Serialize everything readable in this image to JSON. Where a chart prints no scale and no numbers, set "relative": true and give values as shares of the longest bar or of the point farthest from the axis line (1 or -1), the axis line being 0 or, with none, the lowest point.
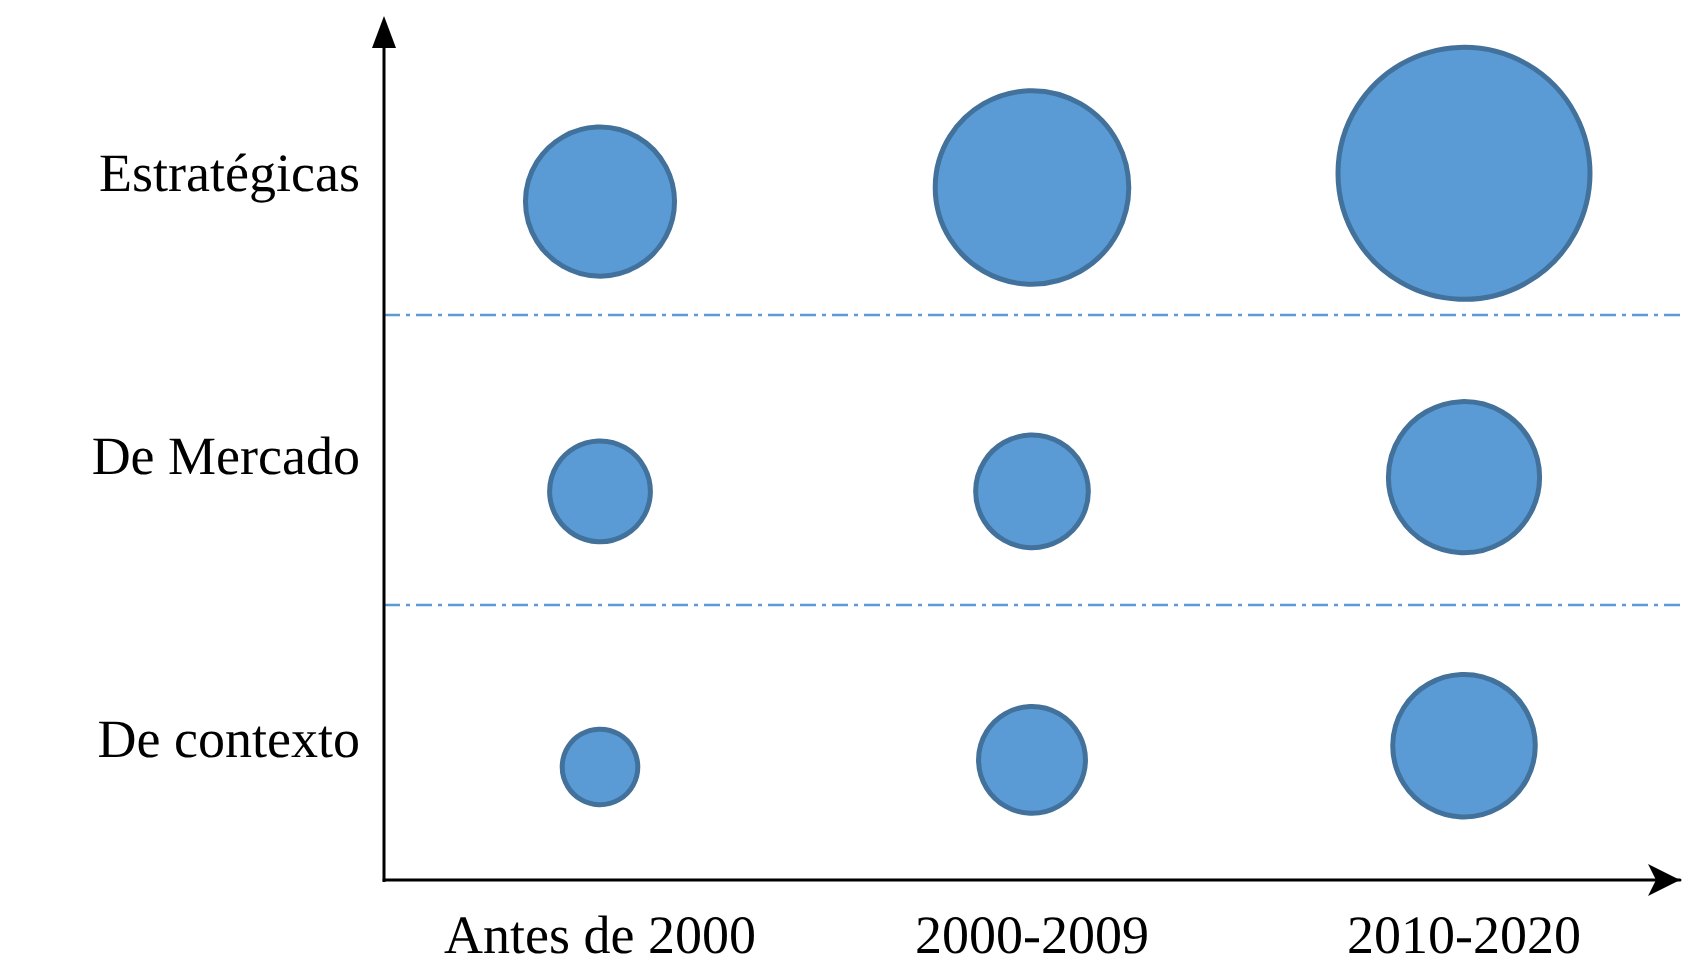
{
  "chart_data": {
    "type": "bubble",
    "relative": true,
    "categories": [
      "Antes de 2000",
      "2000-2009",
      "2010-2020"
    ],
    "annotations": [
      "Estratégicas",
      "De Mercado",
      "De contexto"
    ],
    "ref_lines": [
      {
        "axis": "y",
        "value": 0.8,
        "color": "#5b9bd5"
      },
      {
        "axis": "y",
        "value": 0.39,
        "color": "#5b9bd5"
      }
    ],
    "series": [
      {
        "color": "#5b9bd5",
        "values": [
          0.96,
          0.98,
          1
        ],
        "sizes": [
          0.35,
          0.59,
          1
        ]
      },
      {
        "color": "#5b9bd5",
        "values": [
          0.55,
          0.55,
          0.57
        ],
        "sizes": [
          0.16,
          0.2,
          0.36
        ]
      },
      {
        "color": "#5b9bd5",
        "values": [
          0.16,
          0.17,
          0.19
        ],
        "sizes": [
          0.09,
          0.18,
          0.32
        ]
      }
    ]
  }
}
